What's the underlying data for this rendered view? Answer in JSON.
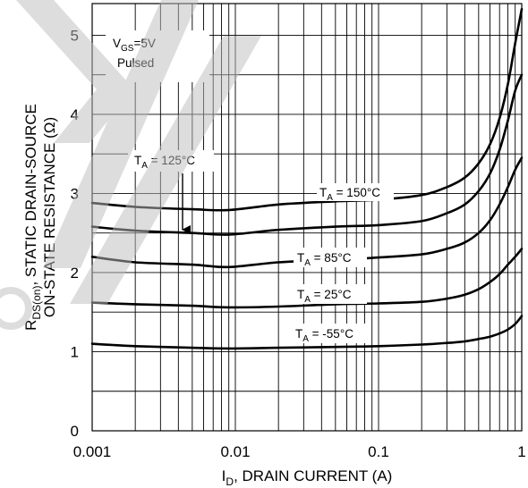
{
  "chart_data": {
    "type": "line",
    "x_scale": "log",
    "xlim": [
      0.001,
      1
    ],
    "ylim": [
      0,
      5.4
    ],
    "grid": true,
    "x_ticks": [
      {
        "value": 0.001,
        "label": "0.001"
      },
      {
        "value": 0.01,
        "label": "0.01"
      },
      {
        "value": 0.1,
        "label": "0.1"
      },
      {
        "value": 1,
        "label": "1"
      }
    ],
    "y_ticks": [
      {
        "value": 0,
        "label": "0"
      },
      {
        "value": 1,
        "label": "1"
      },
      {
        "value": 2,
        "label": "2"
      },
      {
        "value": 3,
        "label": "3"
      },
      {
        "value": 4,
        "label": "4"
      },
      {
        "value": 5,
        "label": "5"
      }
    ],
    "xlabel": {
      "pre": "I",
      "sub": "D",
      "post": ", DRAIN CURRENT (A)"
    },
    "ylabel_line1": {
      "pre": "R",
      "sub": "DS(on)",
      "post": ", STATIC DRAIN-SOURCE"
    },
    "ylabel_line2": "ON-STATE RESISTANCE (Ω)",
    "condition": {
      "pre": "V",
      "sub": "GS",
      "post": "=5V",
      "line2": "Pulsed"
    },
    "series": [
      {
        "name": "TA = 150°C",
        "label": {
          "pre": "T",
          "sub": "A",
          "post": " = 150°C"
        },
        "x": [
          0.001,
          0.002,
          0.005,
          0.009,
          0.02,
          0.05,
          0.1,
          0.2,
          0.3,
          0.4,
          0.5,
          0.6,
          0.7,
          0.8,
          0.9,
          1.0
        ],
        "y": [
          2.88,
          2.83,
          2.8,
          2.79,
          2.86,
          2.9,
          2.92,
          2.98,
          3.08,
          3.2,
          3.38,
          3.62,
          3.95,
          4.38,
          4.9,
          5.33
        ]
      },
      {
        "name": "TA = 125°C",
        "label": {
          "pre": "T",
          "sub": "A",
          "post": " = 125°C"
        },
        "x": [
          0.001,
          0.002,
          0.005,
          0.009,
          0.02,
          0.05,
          0.1,
          0.2,
          0.3,
          0.4,
          0.5,
          0.6,
          0.7,
          0.8,
          0.9,
          1.0
        ],
        "y": [
          2.58,
          2.53,
          2.5,
          2.48,
          2.54,
          2.58,
          2.6,
          2.65,
          2.75,
          2.86,
          3.03,
          3.25,
          3.55,
          3.92,
          4.3,
          4.5
        ]
      },
      {
        "name": "TA = 85°C",
        "label": {
          "pre": "T",
          "sub": "A",
          "post": " = 85°C"
        },
        "x": [
          0.001,
          0.002,
          0.005,
          0.009,
          0.02,
          0.05,
          0.1,
          0.2,
          0.3,
          0.4,
          0.5,
          0.6,
          0.7,
          0.8,
          0.9,
          1.0
        ],
        "y": [
          2.2,
          2.13,
          2.1,
          2.07,
          2.13,
          2.16,
          2.19,
          2.23,
          2.3,
          2.38,
          2.5,
          2.66,
          2.86,
          3.08,
          3.3,
          3.45
        ]
      },
      {
        "name": "TA = 25°C",
        "label": {
          "pre": "T",
          "sub": "A",
          "post": " = 25°C"
        },
        "x": [
          0.001,
          0.002,
          0.005,
          0.009,
          0.02,
          0.05,
          0.1,
          0.2,
          0.3,
          0.4,
          0.5,
          0.6,
          0.7,
          0.8,
          0.9,
          1.0
        ],
        "y": [
          1.62,
          1.6,
          1.58,
          1.56,
          1.57,
          1.6,
          1.61,
          1.63,
          1.67,
          1.72,
          1.79,
          1.88,
          1.98,
          2.1,
          2.2,
          2.3
        ]
      },
      {
        "name": "TA = -55°C",
        "label": {
          "pre": "T",
          "sub": "A",
          "post": " = -55°C"
        },
        "x": [
          0.001,
          0.002,
          0.005,
          0.009,
          0.02,
          0.05,
          0.1,
          0.2,
          0.3,
          0.4,
          0.5,
          0.6,
          0.7,
          0.8,
          0.9,
          1.0
        ],
        "y": [
          1.1,
          1.07,
          1.05,
          1.04,
          1.05,
          1.06,
          1.07,
          1.09,
          1.11,
          1.13,
          1.16,
          1.19,
          1.23,
          1.28,
          1.35,
          1.45
        ]
      }
    ]
  }
}
